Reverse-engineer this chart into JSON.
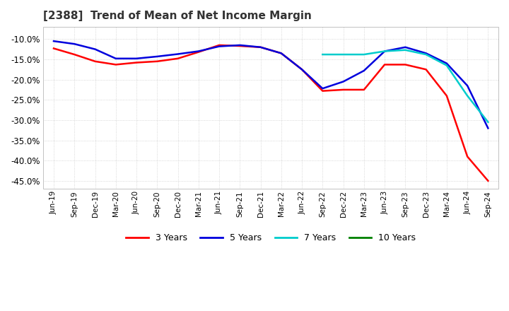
{
  "title": "[2388]  Trend of Mean of Net Income Margin",
  "title_fontsize": 11,
  "background_color": "#ffffff",
  "plot_bg_color": "#ffffff",
  "grid_color": "#cccccc",
  "ylim": [
    -0.47,
    -0.07
  ],
  "yticks": [
    -0.1,
    -0.15,
    -0.2,
    -0.25,
    -0.3,
    -0.35,
    -0.4,
    -0.45
  ],
  "x_labels": [
    "Jun-19",
    "Sep-19",
    "Dec-19",
    "Mar-20",
    "Jun-20",
    "Sep-20",
    "Dec-20",
    "Mar-21",
    "Jun-21",
    "Sep-21",
    "Dec-21",
    "Mar-22",
    "Jun-22",
    "Sep-22",
    "Dec-22",
    "Mar-23",
    "Jun-23",
    "Sep-23",
    "Dec-23",
    "Mar-24",
    "Jun-24",
    "Sep-24"
  ],
  "series": {
    "3 Years": {
      "color": "#ff0000",
      "linewidth": 1.8,
      "data": [
        -0.123,
        -0.138,
        -0.155,
        -0.163,
        -0.158,
        -0.155,
        -0.148,
        -0.132,
        -0.115,
        -0.117,
        -0.12,
        -0.135,
        -0.175,
        -0.228,
        -0.225,
        -0.225,
        -0.163,
        -0.163,
        -0.175,
        -0.24,
        -0.39,
        -0.45
      ]
    },
    "5 Years": {
      "color": "#0000dd",
      "linewidth": 1.8,
      "data": [
        -0.105,
        -0.112,
        -0.125,
        -0.148,
        -0.148,
        -0.143,
        -0.137,
        -0.13,
        -0.118,
        -0.115,
        -0.12,
        -0.135,
        -0.175,
        -0.222,
        -0.205,
        -0.178,
        -0.13,
        -0.12,
        -0.135,
        -0.16,
        -0.215,
        -0.32
      ]
    },
    "7 Years": {
      "color": "#00cccc",
      "linewidth": 1.8,
      "data": [
        null,
        null,
        null,
        null,
        null,
        null,
        null,
        null,
        null,
        null,
        null,
        null,
        null,
        -0.138,
        -0.138,
        -0.138,
        -0.13,
        -0.127,
        -0.138,
        -0.165,
        -0.24,
        -0.305
      ]
    },
    "10 Years": {
      "color": "#008000",
      "linewidth": 1.8,
      "data": [
        null,
        null,
        null,
        null,
        null,
        null,
        null,
        null,
        null,
        null,
        null,
        null,
        null,
        null,
        null,
        null,
        null,
        null,
        null,
        null,
        null,
        null
      ]
    }
  },
  "legend_entries": [
    "3 Years",
    "5 Years",
    "7 Years",
    "10 Years"
  ],
  "legend_colors": [
    "#ff0000",
    "#0000dd",
    "#00cccc",
    "#008000"
  ]
}
